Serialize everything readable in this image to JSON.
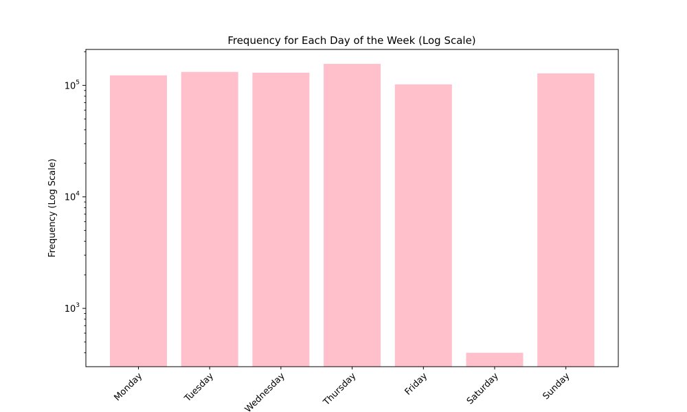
{
  "chart_data": {
    "type": "bar",
    "title": "Frequency for Each Day of the Week (Log Scale)",
    "xlabel": "",
    "ylabel": "Frequency (Log Scale)",
    "categories": [
      "Monday",
      "Tuesday",
      "Wednesday",
      "Thursday",
      "Friday",
      "Saturday",
      "Sunday"
    ],
    "values": [
      123000,
      132000,
      130000,
      156000,
      102000,
      400,
      128000
    ],
    "yscale": "log",
    "ylim": [
      300,
      210000
    ],
    "yticks": [
      {
        "value": 1000,
        "base": "10",
        "exp": "3"
      },
      {
        "value": 10000,
        "base": "10",
        "exp": "4"
      },
      {
        "value": 100000,
        "base": "10",
        "exp": "5"
      }
    ],
    "grid": false,
    "bar_color": "#FFC0CB"
  }
}
